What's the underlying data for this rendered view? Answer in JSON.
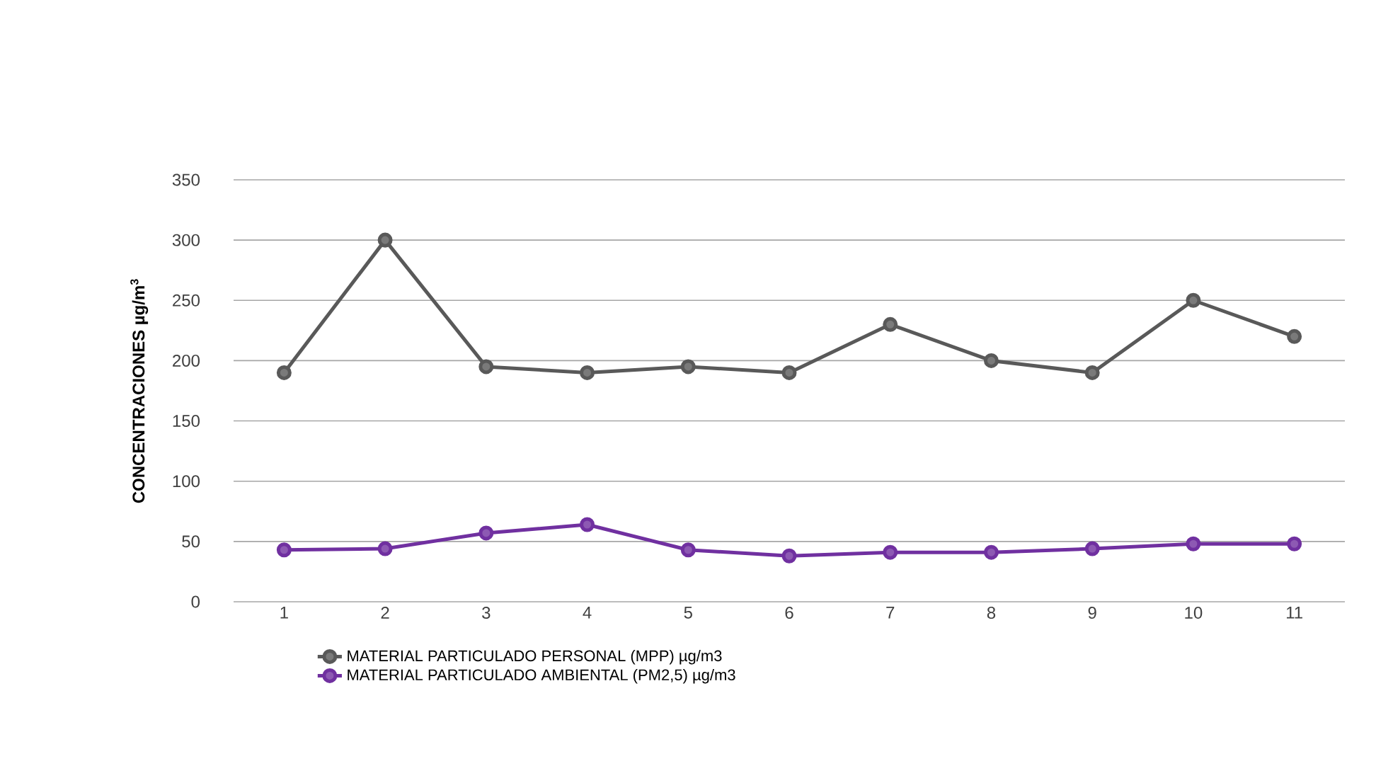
{
  "chart_data": {
    "type": "line",
    "ylabel": "CONCENTRACIONES  µg/m$^{3}$",
    "categories": [
      "1",
      "2",
      "3",
      "4",
      "5",
      "6",
      "7",
      "8",
      "9",
      "10",
      "11"
    ],
    "series": [
      {
        "name": "MATERIAL PARTICULADO PERSONAL (MPP) µg/m3",
        "color": "#595959",
        "values": [
          190,
          300,
          195,
          190,
          195,
          190,
          230,
          200,
          190,
          250,
          220
        ]
      },
      {
        "name": "MATERIAL PARTICULADO AMBIENTAL (PM2,5) µg/m3",
        "color": "#7030a0",
        "values": [
          43,
          44,
          57,
          64,
          43,
          38,
          41,
          41,
          44,
          48,
          48
        ]
      }
    ],
    "ylim": [
      0,
      350
    ],
    "yticks": [
      0,
      50,
      100,
      150,
      200,
      250,
      300,
      350
    ],
    "grid": "y",
    "legend": "bottom",
    "marker": "circle",
    "line_style": "solid"
  }
}
